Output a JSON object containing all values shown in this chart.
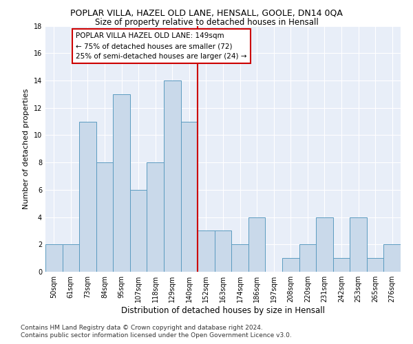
{
  "title": "POPLAR VILLA, HAZEL OLD LANE, HENSALL, GOOLE, DN14 0QA",
  "subtitle": "Size of property relative to detached houses in Hensall",
  "xlabel": "Distribution of detached houses by size in Hensall",
  "ylabel": "Number of detached properties",
  "categories": [
    "50sqm",
    "61sqm",
    "73sqm",
    "84sqm",
    "95sqm",
    "107sqm",
    "118sqm",
    "129sqm",
    "140sqm",
    "152sqm",
    "163sqm",
    "174sqm",
    "186sqm",
    "197sqm",
    "208sqm",
    "220sqm",
    "231sqm",
    "242sqm",
    "253sqm",
    "265sqm",
    "276sqm"
  ],
  "values": [
    2,
    2,
    11,
    8,
    13,
    6,
    8,
    14,
    11,
    3,
    3,
    2,
    4,
    0,
    1,
    2,
    4,
    1,
    4,
    1,
    2
  ],
  "bar_color": "#c9d9ea",
  "bar_edge_color": "#5b9bc0",
  "vline_x": 8.5,
  "vline_color": "#cc0000",
  "annotation_text": "POPLAR VILLA HAZEL OLD LANE: 149sqm\n← 75% of detached houses are smaller (72)\n25% of semi-detached houses are larger (24) →",
  "annotation_box_color": "#ffffff",
  "annotation_box_edge_color": "#cc0000",
  "ylim": [
    0,
    18
  ],
  "yticks": [
    0,
    2,
    4,
    6,
    8,
    10,
    12,
    14,
    16,
    18
  ],
  "background_color": "#e8eef8",
  "grid_color": "#ffffff",
  "footer_line1": "Contains HM Land Registry data © Crown copyright and database right 2024.",
  "footer_line2": "Contains public sector information licensed under the Open Government Licence v3.0.",
  "title_fontsize": 9,
  "subtitle_fontsize": 8.5,
  "xlabel_fontsize": 8.5,
  "ylabel_fontsize": 8,
  "tick_fontsize": 7,
  "annotation_fontsize": 7.5,
  "footer_fontsize": 6.5
}
